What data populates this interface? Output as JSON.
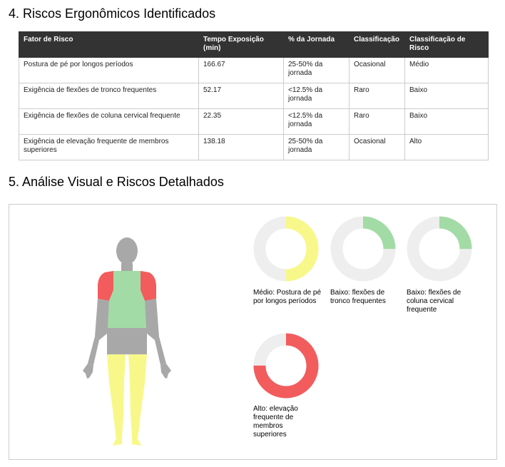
{
  "sections": {
    "s4_title": "4. Riscos Ergonômicos Identificados",
    "s5_title": "5. Análise Visual e Riscos Detalhados"
  },
  "table": {
    "headers": [
      "Fator de Risco",
      "Tempo Exposição (min)",
      "% da Jornada",
      "Classificação",
      "Classificação de Risco"
    ],
    "rows": [
      [
        "Postura de pé por longos períodos",
        "166.67",
        "25-50% da jornada",
        "Ocasional",
        "Médio"
      ],
      [
        "Exigência de flexões de tronco frequentes",
        "52.17",
        "<12.5% da jornada",
        "Raro",
        "Baixo"
      ],
      [
        "Exigência de flexões de coluna cervical frequente",
        "22.35",
        "<12.5% da jornada",
        "Raro",
        "Baixo"
      ],
      [
        "Exigência de elevação frequente de membros superiores",
        "138.18",
        "25-50% da jornada",
        "Ocasional",
        "Alto"
      ]
    ]
  },
  "colors": {
    "medio": "#f8f88a",
    "baixo": "#a3dba6",
    "alto": "#f25c5c",
    "neutral": "#a8a8a8",
    "track": "#eeeeee"
  },
  "body_map": {
    "head": "neutral",
    "neck": "neutral",
    "shoulders": "alto",
    "trunk": "baixo",
    "upper_arms": "neutral",
    "forearms": "neutral",
    "hands": "neutral",
    "hips": "neutral",
    "legs": "medio"
  },
  "donuts": [
    {
      "level": "medio",
      "fraction": 0.5,
      "label": "Médio: Postura de pé por longos períodos"
    },
    {
      "level": "baixo",
      "fraction": 0.25,
      "label": "Baixo: flexões de tronco frequentes"
    },
    {
      "level": "baixo",
      "fraction": 0.25,
      "label": "Baixo: flexões de coluna cervical frequente"
    },
    {
      "level": "alto",
      "fraction": 0.75,
      "label": "Alto: elevação frequente de membros superiores"
    }
  ]
}
